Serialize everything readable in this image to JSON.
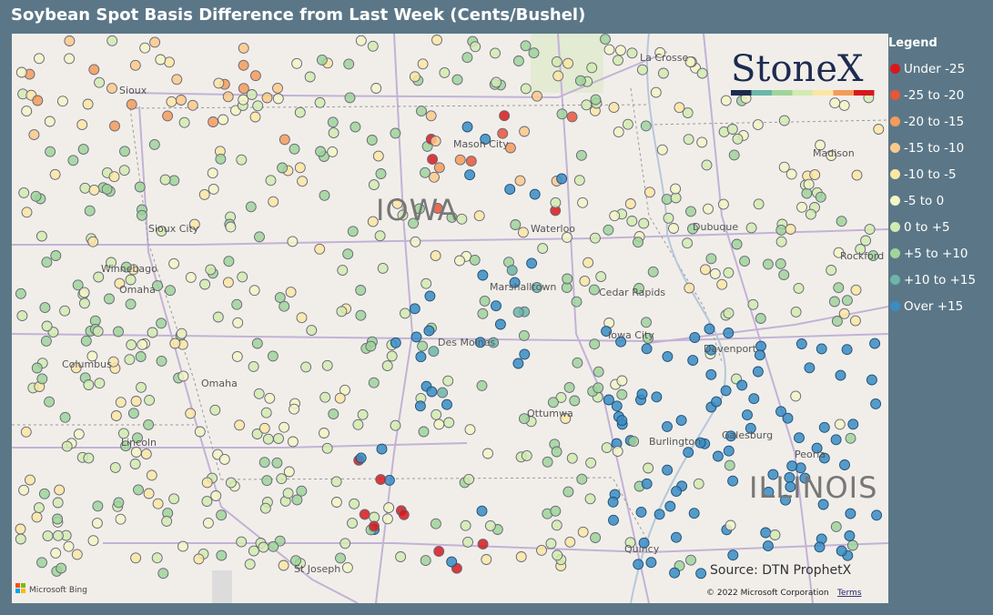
{
  "header": {
    "title": "Soybean Spot Basis Difference from Last Week (Cents/Bushel)"
  },
  "legend": {
    "title": "Legend",
    "items": [
      {
        "label": "Under -25",
        "color": "#d7191c"
      },
      {
        "label": "-25 to -20",
        "color": "#e8553a"
      },
      {
        "label": "-20 to -15",
        "color": "#f39b5b"
      },
      {
        "label": "-15 to -10",
        "color": "#fbc98a"
      },
      {
        "label": "-10 to -5",
        "color": "#fbe6a4"
      },
      {
        "label": "-5 to 0",
        "color": "#f3f5c6"
      },
      {
        "label": "0 to +5",
        "color": "#d2ebb0"
      },
      {
        "label": "+5 to +10",
        "color": "#9fd49a"
      },
      {
        "label": "+10 to +15",
        "color": "#6bb6a8"
      },
      {
        "label": "Over +15",
        "color": "#3a8cc4"
      }
    ]
  },
  "logo": {
    "text": "StoneX"
  },
  "map": {
    "states": [
      "IOWA",
      "ILLINOIS"
    ],
    "cities": [
      "La Crosse",
      "Mason City",
      "Madison",
      "Sioux City",
      "Waterloo",
      "Dubuque",
      "Rockford",
      "Winnebago",
      "Omaha",
      "Marshalltown",
      "Cedar Rapids",
      "Des Moines",
      "Iowa City",
      "Davenport",
      "Columbus",
      "Omaha",
      "Ottumwa",
      "Galesburg",
      "Burlington",
      "Lincoln",
      "Peoria",
      "St Joseph",
      "Quincy",
      "Sioux"
    ]
  },
  "footer": {
    "source": "Source: DTN ProphetX",
    "copyright": "© 2022 Microsoft Corporation",
    "terms": "Terms",
    "attribution": "Microsoft Bing"
  }
}
